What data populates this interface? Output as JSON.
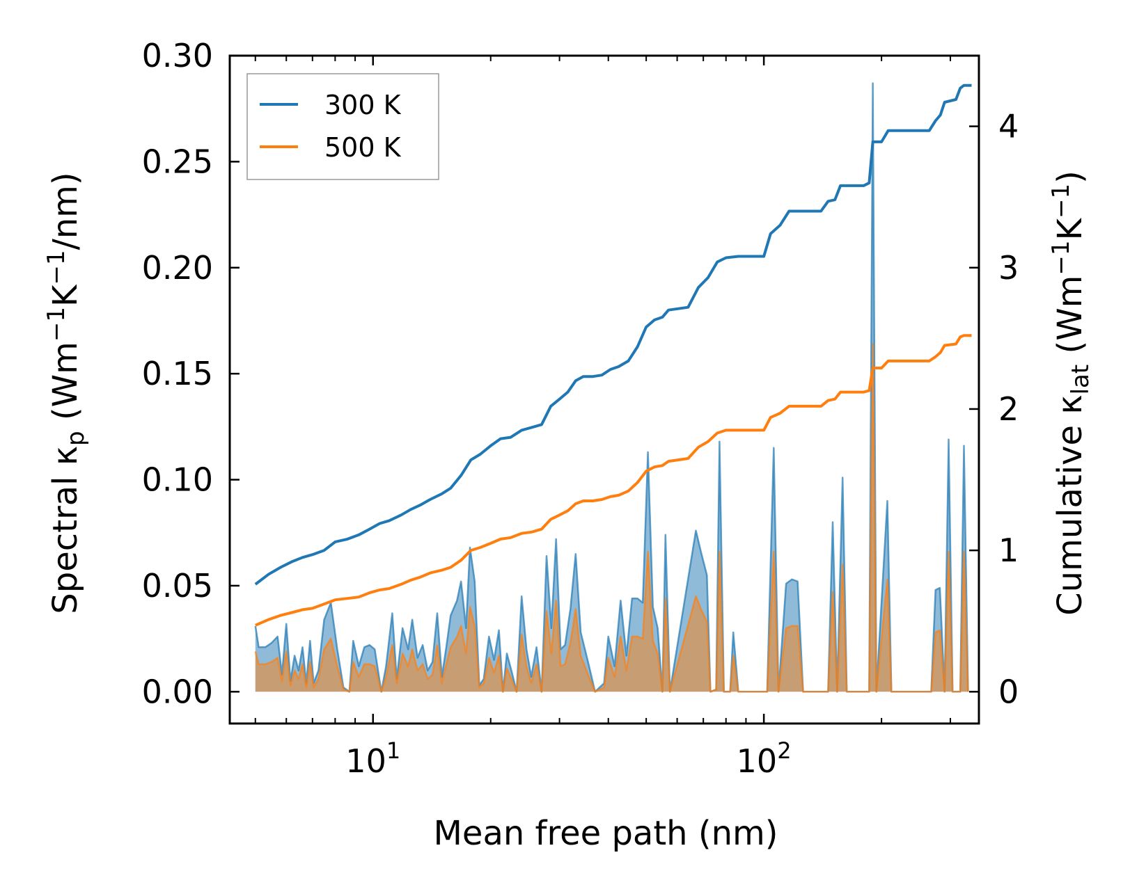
{
  "chart_data": {
    "type": "line",
    "xscale": "log",
    "xlabel": "Mean free path (nm)",
    "ylabel_left": {
      "main": "Spectral κ",
      "sub": "p",
      "unit_pre": " (Wm",
      "e1": "−1",
      "unit_mid": "K",
      "e2": "−1",
      "unit_post": "/nm)"
    },
    "ylabel_right": {
      "main": "Cumulative κ",
      "sub": "lat",
      "unit_pre": " (Wm",
      "e1": "−1",
      "unit_mid": "K",
      "e2": "−1",
      "unit_post": ")"
    },
    "xlim": [
      4.3,
      355
    ],
    "ylim_left": [
      -0.015,
      0.3
    ],
    "ylim_right": [
      -0.225,
      4.5
    ],
    "x_ticks": [
      {
        "base": "10",
        "exp": "1",
        "value": 10
      },
      {
        "base": "10",
        "exp": "2",
        "value": 100
      }
    ],
    "y_ticks_left": [
      "0.00",
      "0.05",
      "0.10",
      "0.15",
      "0.20",
      "0.25",
      "0.30"
    ],
    "y_ticks_right": [
      "0",
      "1",
      "2",
      "3",
      "4"
    ],
    "legend": {
      "position": "top-left",
      "entries": [
        {
          "label": "300 K",
          "color": "#1f77b4"
        },
        {
          "label": "500 K",
          "color": "#ff7f0e"
        }
      ]
    },
    "colors": {
      "300K": "#1f77b4",
      "500K": "#ff7f0e"
    },
    "spectral_300K": [
      [
        5.0,
        0.031
      ],
      [
        5.1,
        0.021
      ],
      [
        5.3,
        0.021
      ],
      [
        5.5,
        0.023
      ],
      [
        5.7,
        0.026
      ],
      [
        5.85,
        0.008
      ],
      [
        6.0,
        0.032
      ],
      [
        6.15,
        0.005
      ],
      [
        6.3,
        0.017
      ],
      [
        6.45,
        0.01
      ],
      [
        6.6,
        0.021
      ],
      [
        6.75,
        0.004
      ],
      [
        6.9,
        0.024
      ],
      [
        7.05,
        0.004
      ],
      [
        7.25,
        0.01
      ],
      [
        7.5,
        0.034
      ],
      [
        7.8,
        0.042
      ],
      [
        8.1,
        0.02
      ],
      [
        8.4,
        0.002
      ],
      [
        8.7,
        0.0
      ],
      [
        8.9,
        0.024
      ],
      [
        9.2,
        0.012
      ],
      [
        9.5,
        0.021
      ],
      [
        9.8,
        0.022
      ],
      [
        10.1,
        0.02
      ],
      [
        10.5,
        0.0
      ],
      [
        10.8,
        0.012
      ],
      [
        11.2,
        0.037
      ],
      [
        11.5,
        0.006
      ],
      [
        11.9,
        0.03
      ],
      [
        12.3,
        0.02
      ],
      [
        12.6,
        0.034
      ],
      [
        13.0,
        0.016
      ],
      [
        13.4,
        0.022
      ],
      [
        13.8,
        0.01
      ],
      [
        14.2,
        0.014
      ],
      [
        14.6,
        0.037
      ],
      [
        15.0,
        0.007
      ],
      [
        15.4,
        0.021
      ],
      [
        15.8,
        0.036
      ],
      [
        16.4,
        0.043
      ],
      [
        16.8,
        0.052
      ],
      [
        17.3,
        0.03
      ],
      [
        17.7,
        0.068
      ],
      [
        18.2,
        0.052
      ],
      [
        18.7,
        0.003
      ],
      [
        19.2,
        0.006
      ],
      [
        19.8,
        0.026
      ],
      [
        20.4,
        0.015
      ],
      [
        21.0,
        0.029
      ],
      [
        21.5,
        0.0
      ],
      [
        22.0,
        0.018
      ],
      [
        22.6,
        0.01
      ],
      [
        23.3,
        0.0
      ],
      [
        24.0,
        0.045
      ],
      [
        24.7,
        0.02
      ],
      [
        25.4,
        0.007
      ],
      [
        26.2,
        0.021
      ],
      [
        27.0,
        0.0
      ],
      [
        27.8,
        0.064
      ],
      [
        28.6,
        0.03
      ],
      [
        29.4,
        0.072
      ],
      [
        30.2,
        0.02
      ],
      [
        31.0,
        0.022
      ],
      [
        32.0,
        0.039
      ],
      [
        33.0,
        0.065
      ],
      [
        34.0,
        0.028
      ],
      [
        35.5,
        0.014
      ],
      [
        37.0,
        0.0
      ],
      [
        39.0,
        0.004
      ],
      [
        40.0,
        0.026
      ],
      [
        41.5,
        0.012
      ],
      [
        43.0,
        0.043
      ],
      [
        44.5,
        0.017
      ],
      [
        46.0,
        0.044
      ],
      [
        47.5,
        0.044
      ],
      [
        49.0,
        0.042
      ],
      [
        50.5,
        0.113
      ],
      [
        52.0,
        0.04
      ],
      [
        53.5,
        0.03
      ],
      [
        55.0,
        0.0
      ],
      [
        56.0,
        0.074
      ],
      [
        57.5,
        0.0
      ],
      [
        67.0,
        0.076
      ],
      [
        69.0,
        0.066
      ],
      [
        71.5,
        0.055
      ],
      [
        73.0,
        0.0
      ],
      [
        75.5,
        0.001
      ],
      [
        77.0,
        0.118
      ],
      [
        79.0,
        0.0
      ],
      [
        82.0,
        0.0
      ],
      [
        83.5,
        0.028
      ],
      [
        86.0,
        0.0
      ],
      [
        102.0,
        0.0
      ],
      [
        106.0,
        0.115
      ],
      [
        109.0,
        0.0
      ],
      [
        114.0,
        0.051
      ],
      [
        118.0,
        0.053
      ],
      [
        122.0,
        0.052
      ],
      [
        126.0,
        0.0
      ],
      [
        146.0,
        0.0
      ],
      [
        150.0,
        0.08
      ],
      [
        154.0,
        0.0
      ],
      [
        159.0,
        0.101
      ],
      [
        163.0,
        0.0
      ],
      [
        186.0,
        0.0
      ],
      [
        190.0,
        0.287
      ],
      [
        194.0,
        0.0
      ],
      [
        207.0,
        0.09
      ],
      [
        212.0,
        0.0
      ],
      [
        268.0,
        0.0
      ],
      [
        275.0,
        0.048
      ],
      [
        282.0,
        0.049
      ],
      [
        290.0,
        0.0
      ],
      [
        297.0,
        0.119
      ],
      [
        304.0,
        0.0
      ],
      [
        318.0,
        0.0
      ],
      [
        325.0,
        0.116
      ],
      [
        333.0,
        0.0
      ]
    ],
    "spectral_500K": [
      [
        5.0,
        0.019
      ],
      [
        5.1,
        0.013
      ],
      [
        5.3,
        0.013
      ],
      [
        5.5,
        0.014
      ],
      [
        5.7,
        0.016
      ],
      [
        5.85,
        0.005
      ],
      [
        6.0,
        0.019
      ],
      [
        6.15,
        0.003
      ],
      [
        6.3,
        0.01
      ],
      [
        6.45,
        0.006
      ],
      [
        6.6,
        0.013
      ],
      [
        6.75,
        0.002
      ],
      [
        6.9,
        0.014
      ],
      [
        7.05,
        0.002
      ],
      [
        7.25,
        0.006
      ],
      [
        7.5,
        0.02
      ],
      [
        7.8,
        0.025
      ],
      [
        8.1,
        0.012
      ],
      [
        8.4,
        0.001
      ],
      [
        8.7,
        0.0
      ],
      [
        8.9,
        0.014
      ],
      [
        9.2,
        0.007
      ],
      [
        9.5,
        0.013
      ],
      [
        9.8,
        0.013
      ],
      [
        10.1,
        0.012
      ],
      [
        10.5,
        0.0
      ],
      [
        10.8,
        0.007
      ],
      [
        11.2,
        0.022
      ],
      [
        11.5,
        0.004
      ],
      [
        11.9,
        0.018
      ],
      [
        12.3,
        0.012
      ],
      [
        12.6,
        0.02
      ],
      [
        13.0,
        0.01
      ],
      [
        13.4,
        0.013
      ],
      [
        13.8,
        0.006
      ],
      [
        14.2,
        0.008
      ],
      [
        14.6,
        0.022
      ],
      [
        15.0,
        0.004
      ],
      [
        15.4,
        0.013
      ],
      [
        15.8,
        0.021
      ],
      [
        16.4,
        0.026
      ],
      [
        16.8,
        0.031
      ],
      [
        17.3,
        0.018
      ],
      [
        17.7,
        0.04
      ],
      [
        18.2,
        0.031
      ],
      [
        18.7,
        0.002
      ],
      [
        19.2,
        0.004
      ],
      [
        19.8,
        0.016
      ],
      [
        20.4,
        0.009
      ],
      [
        21.0,
        0.017
      ],
      [
        21.5,
        0.0
      ],
      [
        22.0,
        0.011
      ],
      [
        22.6,
        0.006
      ],
      [
        23.3,
        0.0
      ],
      [
        24.0,
        0.027
      ],
      [
        24.7,
        0.012
      ],
      [
        25.4,
        0.004
      ],
      [
        26.2,
        0.013
      ],
      [
        27.0,
        0.0
      ],
      [
        27.8,
        0.038
      ],
      [
        28.6,
        0.018
      ],
      [
        29.4,
        0.043
      ],
      [
        30.2,
        0.012
      ],
      [
        31.0,
        0.013
      ],
      [
        32.0,
        0.023
      ],
      [
        33.0,
        0.039
      ],
      [
        34.0,
        0.017
      ],
      [
        35.5,
        0.008
      ],
      [
        37.0,
        0.0
      ],
      [
        39.0,
        0.002
      ],
      [
        40.0,
        0.016
      ],
      [
        41.5,
        0.007
      ],
      [
        43.0,
        0.026
      ],
      [
        44.5,
        0.01
      ],
      [
        46.0,
        0.026
      ],
      [
        47.5,
        0.026
      ],
      [
        49.0,
        0.025
      ],
      [
        50.5,
        0.066
      ],
      [
        52.0,
        0.024
      ],
      [
        53.5,
        0.018
      ],
      [
        55.0,
        0.0
      ],
      [
        56.0,
        0.044
      ],
      [
        57.5,
        0.0
      ],
      [
        67.0,
        0.045
      ],
      [
        69.0,
        0.039
      ],
      [
        71.5,
        0.033
      ],
      [
        73.0,
        0.0
      ],
      [
        75.5,
        0.001
      ],
      [
        77.0,
        0.066
      ],
      [
        79.0,
        0.0
      ],
      [
        82.0,
        0.0
      ],
      [
        83.5,
        0.017
      ],
      [
        86.0,
        0.0
      ],
      [
        102.0,
        0.0
      ],
      [
        106.0,
        0.066
      ],
      [
        109.0,
        0.0
      ],
      [
        114.0,
        0.03
      ],
      [
        118.0,
        0.031
      ],
      [
        122.0,
        0.031
      ],
      [
        126.0,
        0.0
      ],
      [
        146.0,
        0.0
      ],
      [
        150.0,
        0.047
      ],
      [
        154.0,
        0.0
      ],
      [
        159.0,
        0.06
      ],
      [
        163.0,
        0.0
      ],
      [
        186.0,
        0.0
      ],
      [
        190.0,
        0.164
      ],
      [
        194.0,
        0.0
      ],
      [
        207.0,
        0.053
      ],
      [
        212.0,
        0.0
      ],
      [
        268.0,
        0.0
      ],
      [
        275.0,
        0.028
      ],
      [
        282.0,
        0.029
      ],
      [
        290.0,
        0.0
      ],
      [
        297.0,
        0.066
      ],
      [
        304.0,
        0.0
      ],
      [
        318.0,
        0.0
      ],
      [
        325.0,
        0.066
      ],
      [
        333.0,
        0.0
      ]
    ],
    "cumulative_300K": [
      [
        5.0,
        0.76
      ],
      [
        5.4,
        0.83
      ],
      [
        5.8,
        0.88
      ],
      [
        6.2,
        0.92
      ],
      [
        6.6,
        0.95
      ],
      [
        7.0,
        0.97
      ],
      [
        7.5,
        1.0
      ],
      [
        8.0,
        1.06
      ],
      [
        8.6,
        1.08
      ],
      [
        9.2,
        1.11
      ],
      [
        9.8,
        1.15
      ],
      [
        10.4,
        1.19
      ],
      [
        11.0,
        1.21
      ],
      [
        11.8,
        1.25
      ],
      [
        12.5,
        1.29
      ],
      [
        13.2,
        1.32
      ],
      [
        14.0,
        1.36
      ],
      [
        15.0,
        1.4
      ],
      [
        15.8,
        1.44
      ],
      [
        16.8,
        1.53
      ],
      [
        17.8,
        1.64
      ],
      [
        18.8,
        1.68
      ],
      [
        20.0,
        1.74
      ],
      [
        21.2,
        1.79
      ],
      [
        22.5,
        1.8
      ],
      [
        24.0,
        1.85
      ],
      [
        25.5,
        1.87
      ],
      [
        27.0,
        1.89
      ],
      [
        28.5,
        2.02
      ],
      [
        30.0,
        2.07
      ],
      [
        31.5,
        2.12
      ],
      [
        33.0,
        2.2
      ],
      [
        34.5,
        2.23
      ],
      [
        36.5,
        2.23
      ],
      [
        38.5,
        2.24
      ],
      [
        40.5,
        2.28
      ],
      [
        42.5,
        2.3
      ],
      [
        45.0,
        2.34
      ],
      [
        47.5,
        2.44
      ],
      [
        50.0,
        2.58
      ],
      [
        52.5,
        2.63
      ],
      [
        55.0,
        2.65
      ],
      [
        57.0,
        2.7
      ],
      [
        64.0,
        2.72
      ],
      [
        68.0,
        2.86
      ],
      [
        72.0,
        2.93
      ],
      [
        76.0,
        3.04
      ],
      [
        80.0,
        3.07
      ],
      [
        86.0,
        3.08
      ],
      [
        100.0,
        3.08
      ],
      [
        104.0,
        3.24
      ],
      [
        110.0,
        3.3
      ],
      [
        116.0,
        3.4
      ],
      [
        125.0,
        3.4
      ],
      [
        140.0,
        3.4
      ],
      [
        146.0,
        3.47
      ],
      [
        152.0,
        3.48
      ],
      [
        157.0,
        3.58
      ],
      [
        180.0,
        3.58
      ],
      [
        186.0,
        3.6
      ],
      [
        190.0,
        3.89
      ],
      [
        200.0,
        3.89
      ],
      [
        208.0,
        3.97
      ],
      [
        265.0,
        3.97
      ],
      [
        275.0,
        4.04
      ],
      [
        283.0,
        4.08
      ],
      [
        290.0,
        4.17
      ],
      [
        310.0,
        4.19
      ],
      [
        318.0,
        4.27
      ],
      [
        325.0,
        4.29
      ],
      [
        340.0,
        4.29
      ]
    ],
    "cumulative_500K": [
      [
        5.0,
        0.47
      ],
      [
        5.4,
        0.51
      ],
      [
        5.8,
        0.54
      ],
      [
        6.2,
        0.56
      ],
      [
        6.6,
        0.58
      ],
      [
        7.0,
        0.59
      ],
      [
        7.5,
        0.62
      ],
      [
        8.0,
        0.65
      ],
      [
        8.6,
        0.66
      ],
      [
        9.2,
        0.67
      ],
      [
        9.8,
        0.7
      ],
      [
        10.4,
        0.72
      ],
      [
        11.0,
        0.73
      ],
      [
        11.8,
        0.76
      ],
      [
        12.5,
        0.79
      ],
      [
        13.2,
        0.81
      ],
      [
        14.0,
        0.84
      ],
      [
        15.0,
        0.86
      ],
      [
        15.8,
        0.88
      ],
      [
        16.8,
        0.93
      ],
      [
        17.8,
        1.0
      ],
      [
        18.8,
        1.02
      ],
      [
        20.0,
        1.05
      ],
      [
        21.2,
        1.08
      ],
      [
        22.5,
        1.09
      ],
      [
        24.0,
        1.12
      ],
      [
        25.5,
        1.13
      ],
      [
        27.0,
        1.15
      ],
      [
        28.5,
        1.22
      ],
      [
        30.0,
        1.25
      ],
      [
        31.5,
        1.28
      ],
      [
        33.0,
        1.33
      ],
      [
        34.5,
        1.35
      ],
      [
        36.5,
        1.35
      ],
      [
        38.5,
        1.36
      ],
      [
        40.5,
        1.38
      ],
      [
        42.5,
        1.39
      ],
      [
        45.0,
        1.42
      ],
      [
        47.5,
        1.48
      ],
      [
        50.0,
        1.56
      ],
      [
        52.5,
        1.59
      ],
      [
        55.0,
        1.6
      ],
      [
        57.0,
        1.63
      ],
      [
        64.0,
        1.65
      ],
      [
        68.0,
        1.73
      ],
      [
        72.0,
        1.77
      ],
      [
        76.0,
        1.83
      ],
      [
        80.0,
        1.85
      ],
      [
        86.0,
        1.85
      ],
      [
        100.0,
        1.85
      ],
      [
        104.0,
        1.94
      ],
      [
        110.0,
        1.97
      ],
      [
        116.0,
        2.02
      ],
      [
        125.0,
        2.02
      ],
      [
        140.0,
        2.02
      ],
      [
        146.0,
        2.06
      ],
      [
        152.0,
        2.07
      ],
      [
        157.0,
        2.12
      ],
      [
        180.0,
        2.12
      ],
      [
        186.0,
        2.13
      ],
      [
        190.0,
        2.29
      ],
      [
        200.0,
        2.29
      ],
      [
        208.0,
        2.34
      ],
      [
        265.0,
        2.34
      ],
      [
        275.0,
        2.37
      ],
      [
        283.0,
        2.4
      ],
      [
        290.0,
        2.45
      ],
      [
        310.0,
        2.46
      ],
      [
        318.0,
        2.51
      ],
      [
        325.0,
        2.52
      ],
      [
        340.0,
        2.52
      ]
    ]
  }
}
